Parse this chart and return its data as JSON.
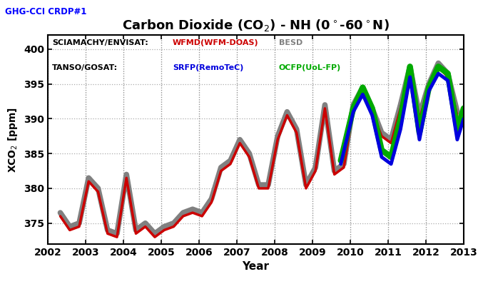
{
  "title": "Carbon Dioxide (CO$_2$) - NH (0$^\\circ$-60$^\\circ$N)",
  "top_label": "GHG-CCI CRDP#1",
  "ylabel": "XCO$_2$ [ppm]",
  "xlabel": "Year",
  "ylim": [
    372,
    402
  ],
  "yticks": [
    375,
    380,
    385,
    390,
    395,
    400
  ],
  "xticks": [
    2002,
    2003,
    2004,
    2005,
    2006,
    2007,
    2008,
    2009,
    2010,
    2011,
    2012,
    2013
  ],
  "bg_color": "#ffffff",
  "grid_color": "#888888",
  "colors": {
    "red": "#cc0000",
    "gray": "#808080",
    "blue": "#0000dd",
    "green": "#00aa00"
  },
  "wfmd_x": [
    2002.33,
    2002.58,
    2002.83,
    2003.08,
    2003.33,
    2003.58,
    2003.83,
    2004.08,
    2004.33,
    2004.58,
    2004.83,
    2005.08,
    2005.33,
    2005.58,
    2005.83,
    2006.08,
    2006.33,
    2006.58,
    2006.83,
    2007.08,
    2007.33,
    2007.58,
    2007.83,
    2008.08,
    2008.33,
    2008.58,
    2008.83,
    2009.08,
    2009.33,
    2009.58,
    2009.83,
    2010.08,
    2010.33,
    2010.58,
    2010.83,
    2011.08,
    2011.33,
    2011.58,
    2011.83,
    2012.08,
    2012.33,
    2012.58,
    2012.83
  ],
  "wfmd_y": [
    376.0,
    374.0,
    374.5,
    381.0,
    379.5,
    373.5,
    373.0,
    381.5,
    373.5,
    374.5,
    373.0,
    374.0,
    374.5,
    376.0,
    376.5,
    376.0,
    378.0,
    382.5,
    383.5,
    386.5,
    384.5,
    380.0,
    380.0,
    387.0,
    390.5,
    388.0,
    380.0,
    382.5,
    391.5,
    382.0,
    383.0,
    391.5,
    394.0,
    391.0,
    387.5,
    386.5,
    391.5,
    397.0,
    390.0,
    394.5,
    397.5,
    396.0,
    390.5
  ],
  "besd_x": [
    2002.33,
    2002.58,
    2002.83,
    2003.08,
    2003.33,
    2003.58,
    2003.83,
    2004.08,
    2004.33,
    2004.58,
    2004.83,
    2005.08,
    2005.33,
    2005.58,
    2005.83,
    2006.08,
    2006.33,
    2006.58,
    2006.83,
    2007.08,
    2007.33,
    2007.58,
    2007.83,
    2008.08,
    2008.33,
    2008.58,
    2008.83,
    2009.08,
    2009.33,
    2009.58,
    2009.83,
    2010.08,
    2010.33,
    2010.58,
    2010.83,
    2011.08,
    2011.33,
    2011.58,
    2011.83,
    2012.08,
    2012.33,
    2012.58,
    2012.83
  ],
  "besd_y": [
    376.5,
    374.5,
    375.0,
    381.5,
    380.0,
    374.0,
    373.5,
    382.0,
    374.0,
    375.0,
    373.5,
    374.5,
    375.0,
    376.5,
    377.0,
    376.5,
    378.5,
    383.0,
    384.0,
    387.0,
    385.0,
    380.5,
    380.5,
    387.5,
    391.0,
    388.5,
    380.5,
    383.0,
    392.0,
    382.5,
    383.5,
    392.0,
    394.5,
    391.5,
    388.0,
    387.0,
    392.0,
    397.5,
    390.5,
    395.0,
    398.0,
    396.5,
    391.0
  ],
  "srfp_x": [
    2009.75,
    2010.08,
    2010.33,
    2010.58,
    2010.83,
    2011.08,
    2011.33,
    2011.58,
    2011.83,
    2012.08,
    2012.33,
    2012.58,
    2012.83,
    2013.0
  ],
  "srfp_y": [
    383.5,
    391.0,
    393.5,
    390.5,
    384.5,
    383.5,
    388.5,
    396.0,
    387.0,
    394.0,
    396.5,
    395.5,
    387.0,
    390.0
  ],
  "ocfp_x": [
    2009.75,
    2010.08,
    2010.33,
    2010.58,
    2010.83,
    2011.08,
    2011.33,
    2011.58,
    2011.83,
    2012.08,
    2012.33,
    2012.58,
    2012.83,
    2013.0
  ],
  "ocfp_y": [
    384.0,
    391.5,
    394.5,
    391.5,
    385.5,
    384.5,
    390.0,
    397.5,
    388.0,
    394.5,
    397.5,
    396.5,
    388.5,
    391.5
  ]
}
